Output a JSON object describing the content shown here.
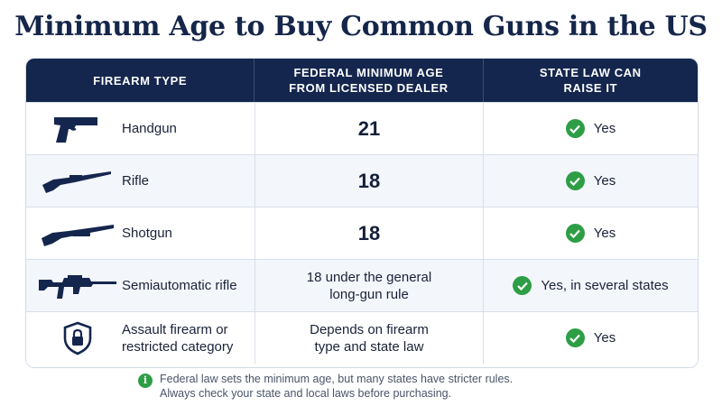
{
  "title": "Minimum Age to Buy Common Guns in the US",
  "headers": {
    "type": "FIREARM TYPE",
    "federal": "FEDERAL MINIMUM AGE FROM LICENSED DEALER",
    "state": "STATE LAW CAN RAISE IT"
  },
  "rows": [
    {
      "icon": "handgun-icon",
      "type": "Handgun",
      "federal": "21",
      "state": "Yes"
    },
    {
      "icon": "rifle-icon",
      "type": "Rifle",
      "federal": "18",
      "state": "Yes"
    },
    {
      "icon": "shotgun-icon",
      "type": "Shotgun",
      "federal": "18",
      "state": "Yes"
    },
    {
      "icon": "semiautomatic-rifle-icon",
      "type": "Semiautomatic rifle",
      "federal": "18 under the general long-gun rule",
      "state": "Yes, in several states"
    },
    {
      "icon": "shield-lock-icon",
      "type": "Assault firearm or restricted category",
      "federal": "Depends on firearm type and state law",
      "state": "Yes"
    }
  ],
  "footer": {
    "line1": "Federal law sets the minimum age, but many states have stricter rules.",
    "line2": "Always check your state and local laws before purchasing."
  },
  "colors": {
    "header_bg": "#14264d",
    "title": "#15264a",
    "check": "#2e9e46",
    "row_alt": "#f3f6fb"
  }
}
